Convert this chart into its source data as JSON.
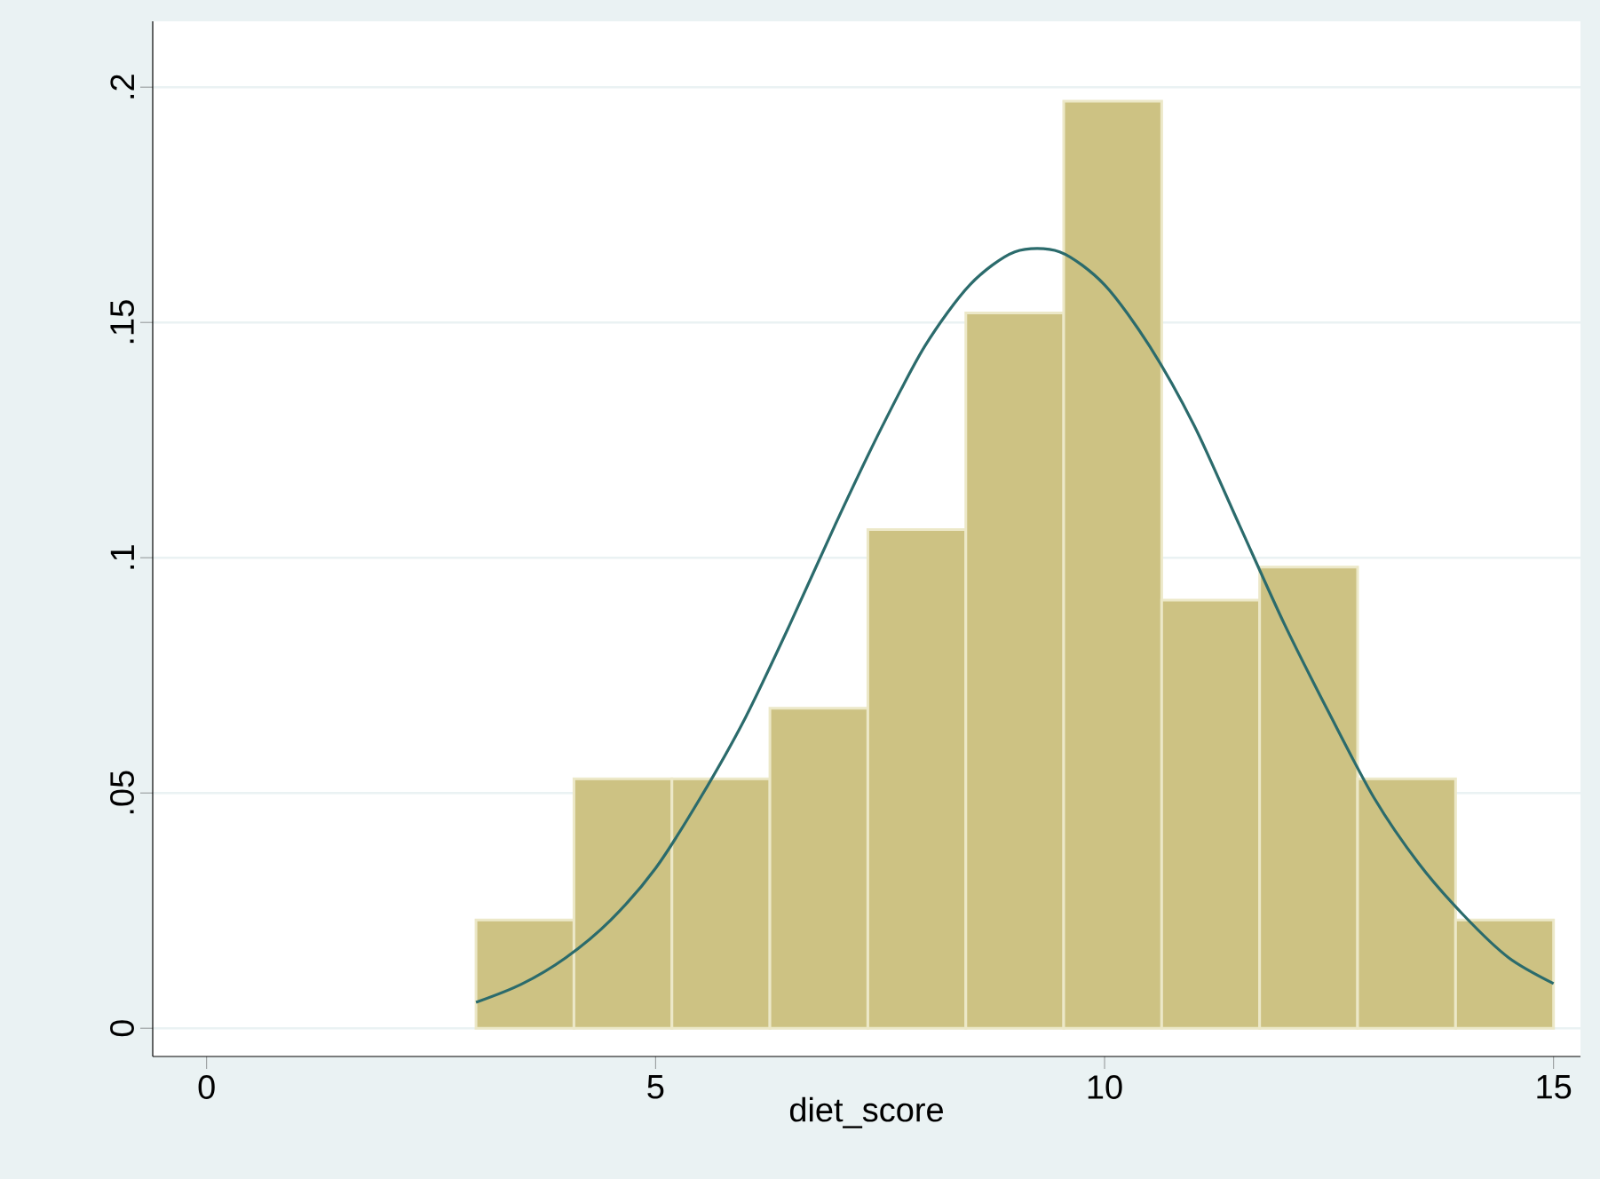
{
  "chart_data": {
    "type": "histogram",
    "xlabel": "diet_score",
    "series": [
      {
        "type": "histogram",
        "bins": [
          3,
          4.091,
          5.182,
          6.273,
          7.364,
          8.455,
          9.545,
          10.636,
          11.727,
          12.818,
          13.909,
          15
        ],
        "values": [
          0.023,
          0.053,
          0.053,
          0.068,
          0.106,
          0.152,
          0.197,
          0.091,
          0.098,
          0.053,
          0.023
        ],
        "color": "#cdc283"
      },
      {
        "type": "line",
        "x": [
          3,
          3.5,
          4,
          4.5,
          5,
          5.5,
          6,
          6.5,
          7,
          7.5,
          8,
          8.5,
          9,
          9.5,
          10,
          10.5,
          11,
          11.5,
          12,
          12.5,
          13,
          13.5,
          14,
          14.5,
          15
        ],
        "values": [
          0.0055,
          0.0093,
          0.015,
          0.023,
          0.034,
          0.049,
          0.066,
          0.086,
          0.107,
          0.127,
          0.145,
          0.158,
          0.165,
          0.165,
          0.158,
          0.145,
          0.128,
          0.107,
          0.086,
          0.067,
          0.049,
          0.035,
          0.024,
          0.015,
          0.0095
        ],
        "color": "#2b6b6c"
      }
    ],
    "xlim": [
      -0.6,
      15.3
    ],
    "ylim": [
      -0.006,
      0.214
    ],
    "xticks": [
      0,
      5,
      10,
      15
    ],
    "yticks": [
      0,
      {
        "value": 0.05,
        "label": ".05"
      },
      {
        "value": 0.1,
        "label": ".1"
      },
      {
        "value": 0.15,
        "label": ".15"
      },
      {
        "value": 0.2,
        "label": ".2"
      }
    ],
    "grid": "y"
  }
}
